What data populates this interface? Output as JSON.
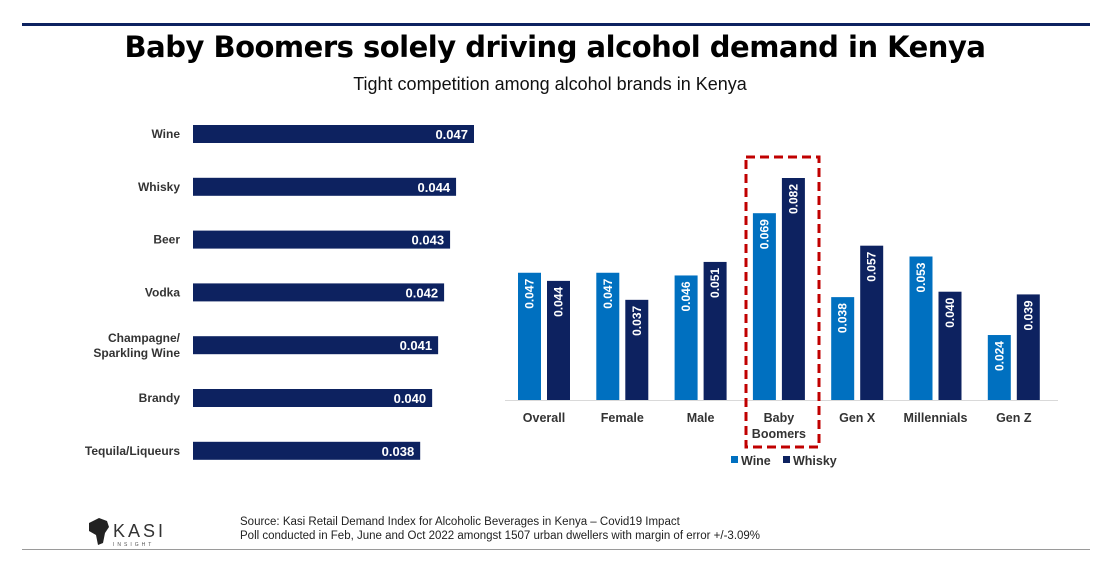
{
  "title": "Baby Boomers solely driving alcohol demand in Kenya",
  "subtitle": "Tight competition among alcohol brands in Kenya",
  "chart_data": [
    {
      "type": "bar",
      "orientation": "horizontal",
      "categories": [
        "Wine",
        "Whisky",
        "Beer",
        "Vodka",
        "Champagne/ Sparkling Wine",
        "Brandy",
        "Tequila/Liqueurs"
      ],
      "values": [
        0.047,
        0.044,
        0.043,
        0.042,
        0.041,
        0.04,
        0.038
      ],
      "labels": [
        "0.047",
        "0.044",
        "0.043",
        "0.042",
        "0.041",
        "0.040",
        "0.038"
      ],
      "color": "#0d2260",
      "xlim": [
        0,
        0.05
      ],
      "grid": false
    },
    {
      "type": "bar",
      "orientation": "vertical",
      "categories": [
        "Overall",
        "Female",
        "Male",
        "Baby Boomers",
        "Gen X",
        "Millennials",
        "Gen Z"
      ],
      "series": [
        {
          "name": "Wine",
          "color": "#0070c0",
          "values": [
            0.047,
            0.047,
            0.046,
            0.069,
            0.038,
            0.053,
            0.024
          ],
          "labels": [
            "0.047",
            "0.047",
            "0.046",
            "0.069",
            "0.038",
            "0.053",
            "0.024"
          ]
        },
        {
          "name": "Whisky",
          "color": "#0d2260",
          "values": [
            0.044,
            0.037,
            0.051,
            0.082,
            0.057,
            0.04,
            0.039
          ],
          "labels": [
            "0.044",
            "0.037",
            "0.051",
            "0.082",
            "0.057",
            "0.040",
            "0.039"
          ]
        }
      ],
      "ylim": [
        0,
        0.085
      ],
      "grid": false,
      "legend": "bottom",
      "highlight": {
        "category": "Baby Boomers",
        "color": "#c00000",
        "style": "dashed"
      }
    }
  ],
  "footer": {
    "logo_text": "KASI INSIGHT",
    "source": "Source: Kasi Retail Demand Index for Alcoholic Beverages  in Kenya – Covid19 Impact",
    "poll": "Poll conducted in Feb, June and Oct 2022 amongst 1507  urban dwellers with margin of error +/-3.09%"
  }
}
